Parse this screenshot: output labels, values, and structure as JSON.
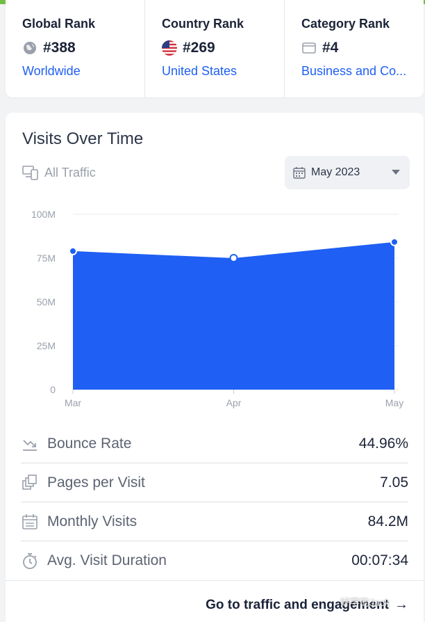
{
  "ranks": [
    {
      "title": "Global Rank",
      "value": "#388",
      "link": "Worldwide",
      "icon": "globe-icon"
    },
    {
      "title": "Country Rank",
      "value": "#269",
      "link": "United States",
      "icon": "us-flag-icon"
    },
    {
      "title": "Category Rank",
      "value": "#4",
      "link": "Business and Co...",
      "icon": "category-icon"
    }
  ],
  "visits": {
    "title": "Visits Over Time",
    "traffic_filter": "All Traffic",
    "date_selected": "May 2023"
  },
  "chart_data": {
    "type": "area",
    "title": "Visits Over Time",
    "categories": [
      "Mar",
      "Apr",
      "May"
    ],
    "values": [
      79000000,
      75000000,
      84200000
    ],
    "ylim": [
      0,
      100000000
    ],
    "yticks": [
      0,
      25000000,
      50000000,
      75000000,
      100000000
    ],
    "ytick_labels": [
      "0",
      "25M",
      "50M",
      "75M",
      "100M"
    ],
    "color": "#1f5ff3",
    "grid": true
  },
  "metrics": [
    {
      "label": "Bounce Rate",
      "value": "44.96%",
      "icon": "bounce-rate-icon"
    },
    {
      "label": "Pages per Visit",
      "value": "7.05",
      "icon": "pages-icon"
    },
    {
      "label": "Monthly Visits",
      "value": "84.2M",
      "icon": "calendar-icon"
    },
    {
      "label": "Avg. Visit Duration",
      "value": "00:07:34",
      "icon": "stopwatch-icon"
    }
  ],
  "footer": {
    "link_label": "Go to traffic and engagement"
  },
  "watermark": "好学的Jack"
}
